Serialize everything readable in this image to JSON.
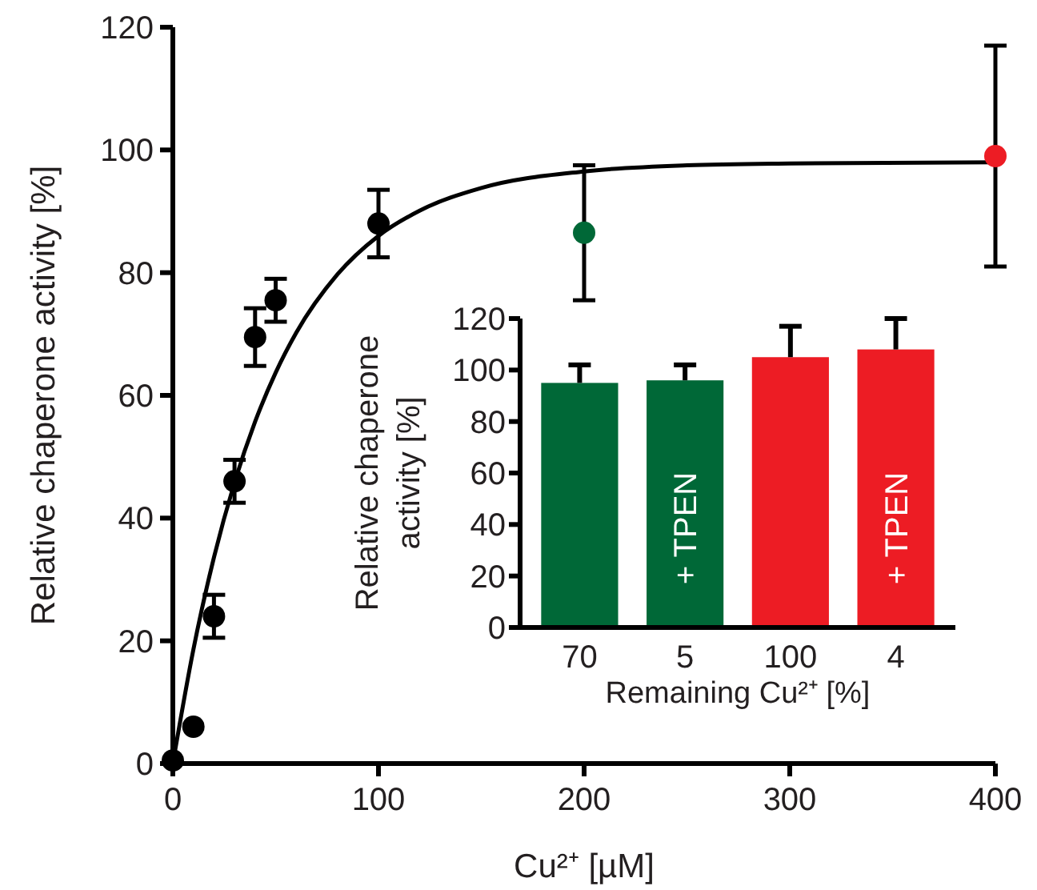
{
  "chart_data": [
    {
      "type": "scatter",
      "xlabel": "Cu²⁺ [µM]",
      "ylabel": "Relative chaperone activity [%]",
      "xlim": [
        0,
        400
      ],
      "xticks": [
        0,
        100,
        200,
        300,
        400
      ],
      "ylim": [
        0,
        120
      ],
      "yticks": [
        0,
        20,
        40,
        60,
        80,
        100,
        120
      ],
      "series": [
        {
          "type": "line",
          "color": "#000000",
          "x": [
            0,
            10,
            20,
            30,
            40,
            50,
            60,
            80,
            100,
            120,
            150,
            200,
            250,
            300,
            400
          ],
          "values": [
            0,
            18.6,
            33.6,
            45.8,
            55.7,
            63.7,
            70.2,
            79.7,
            86,
            90.1,
            93.8,
            96.5,
            97.5,
            97.8,
            98
          ]
        },
        {
          "marker": "circle",
          "color": "#000000",
          "colors": [
            "#000000",
            "#000000",
            "#000000",
            "#000000",
            "#000000",
            "#000000",
            "#000000",
            "#006837",
            "#ed1c24"
          ],
          "x": [
            0,
            10,
            20,
            30,
            40,
            50,
            100,
            200,
            400
          ],
          "values": [
            0.5,
            6,
            24,
            46,
            69.5,
            75.5,
            88,
            86.5,
            99
          ],
          "errors": [
            null,
            null,
            3.5,
            3.5,
            4.7,
            3.5,
            5.5,
            11,
            18
          ]
        }
      ]
    },
    {
      "type": "bar",
      "xlabel": "Remaining Cu²⁺ [%]",
      "ylabel": "Relative chaperone\nactivity [%]",
      "categories": [
        "70",
        "5",
        "100",
        "4"
      ],
      "values": [
        95,
        96,
        105,
        108
      ],
      "errors": [
        7,
        6,
        12,
        12
      ],
      "colors": [
        "#006837",
        "#006837",
        "#ed1c24",
        "#ed1c24"
      ],
      "ylim": [
        0,
        120
      ],
      "yticks": [
        0,
        20,
        40,
        60,
        80,
        100,
        120
      ],
      "annotations": [
        "+ TPEN",
        "+ TPEN"
      ]
    }
  ]
}
